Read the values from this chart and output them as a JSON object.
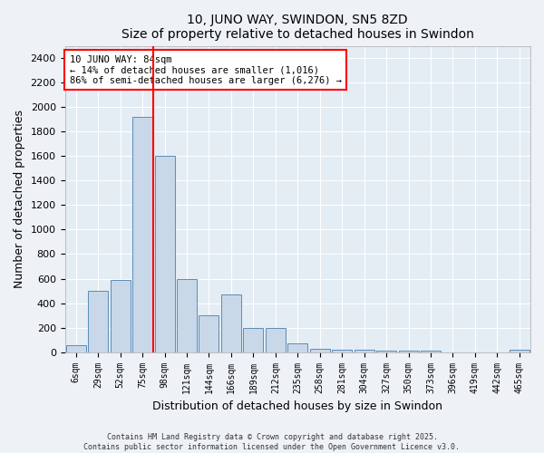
{
  "title": "10, JUNO WAY, SWINDON, SN5 8ZD",
  "subtitle": "Size of property relative to detached houses in Swindon",
  "xlabel": "Distribution of detached houses by size in Swindon",
  "ylabel": "Number of detached properties",
  "categories": [
    "6sqm",
    "29sqm",
    "52sqm",
    "75sqm",
    "98sqm",
    "121sqm",
    "144sqm",
    "166sqm",
    "189sqm",
    "212sqm",
    "235sqm",
    "258sqm",
    "281sqm",
    "304sqm",
    "327sqm",
    "350sqm",
    "373sqm",
    "396sqm",
    "419sqm",
    "442sqm",
    "465sqm"
  ],
  "values": [
    60,
    500,
    590,
    1920,
    1600,
    600,
    300,
    470,
    195,
    195,
    70,
    30,
    20,
    20,
    10,
    10,
    10,
    0,
    0,
    0,
    20
  ],
  "bar_color": "#c8d8e8",
  "bar_edge_color": "#5b8db8",
  "red_line_index": 3.5,
  "annotation_title": "10 JUNO WAY: 84sqm",
  "annotation_line1": "← 14% of detached houses are smaller (1,016)",
  "annotation_line2": "86% of semi-detached houses are larger (6,276) →",
  "footer_line1": "Contains HM Land Registry data © Crown copyright and database right 2025.",
  "footer_line2": "Contains public sector information licensed under the Open Government Licence v3.0.",
  "ylim": [
    0,
    2500
  ],
  "yticks": [
    0,
    200,
    400,
    600,
    800,
    1000,
    1200,
    1400,
    1600,
    1800,
    2000,
    2200,
    2400
  ],
  "background_color": "#eef2f7",
  "plot_background": "#e4ecf4",
  "figsize": [
    6.0,
    5.0
  ],
  "dpi": 100
}
